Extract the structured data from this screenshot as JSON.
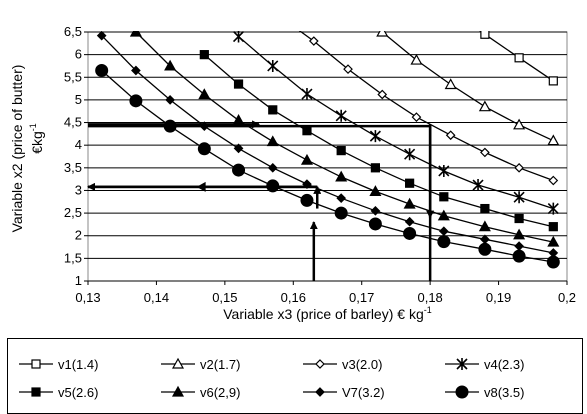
{
  "chart_data": {
    "type": "line",
    "xlabel": "Variable x3 (price of barley) € kg",
    "xlabel_sup": "-1",
    "ylabel": "Variable x2 (price of butter)",
    "ylabel_unit": "€kg",
    "ylabel_sup": "-1",
    "xlim": [
      0.13,
      0.2
    ],
    "ylim": [
      1,
      6.5
    ],
    "x_ticks": [
      "0,13",
      "0,14",
      "0,15",
      "0,16",
      "0,17",
      "0,18",
      "0,19",
      "0,2"
    ],
    "y_ticks": [
      "1",
      "1,5",
      "2",
      "2,5",
      "3",
      "3,5",
      "4",
      "4,5",
      "5",
      "5,5",
      "6",
      "6,5"
    ],
    "grid": "horizontal",
    "legend_position": "bottom",
    "series": [
      {
        "name": "v1(1.4)",
        "marker": "square-open",
        "x": [
          0.183,
          0.188,
          0.193,
          0.198
        ],
        "y": [
          7.0,
          6.45,
          5.93,
          5.42
        ]
      },
      {
        "name": "v2(1.7)",
        "marker": "triangle-open",
        "x": [
          0.173,
          0.178,
          0.183,
          0.188,
          0.193,
          0.198
        ],
        "y": [
          6.5,
          5.88,
          5.34,
          4.85,
          4.45,
          4.1
        ]
      },
      {
        "name": "v3(2.0)",
        "marker": "diamond-open",
        "x": [
          0.158,
          0.163,
          0.168,
          0.173,
          0.178,
          0.183,
          0.188,
          0.193,
          0.198
        ],
        "y": [
          6.85,
          6.3,
          5.68,
          5.12,
          4.62,
          4.22,
          3.84,
          3.5,
          3.22
        ]
      },
      {
        "name": "v4(2.3)",
        "marker": "star",
        "x": [
          0.152,
          0.157,
          0.162,
          0.167,
          0.172,
          0.177,
          0.182,
          0.187,
          0.193,
          0.198
        ],
        "y": [
          6.4,
          5.75,
          5.13,
          4.65,
          4.2,
          3.8,
          3.43,
          3.12,
          2.85,
          2.6
        ]
      },
      {
        "name": "v5(2.6)",
        "marker": "square",
        "x": [
          0.147,
          0.152,
          0.157,
          0.162,
          0.167,
          0.172,
          0.177,
          0.182,
          0.188,
          0.193,
          0.198
        ],
        "y": [
          6.0,
          5.35,
          4.78,
          4.32,
          3.88,
          3.5,
          3.16,
          2.86,
          2.6,
          2.38,
          2.2
        ]
      },
      {
        "name": "v6(2,9)",
        "marker": "triangle",
        "x": [
          0.137,
          0.142,
          0.147,
          0.152,
          0.157,
          0.162,
          0.167,
          0.172,
          0.177,
          0.182,
          0.188,
          0.193,
          0.198
        ],
        "y": [
          6.5,
          5.75,
          5.12,
          4.55,
          4.08,
          3.67,
          3.3,
          2.98,
          2.7,
          2.44,
          2.2,
          2.02,
          1.86
        ]
      },
      {
        "name": "V7(3.2)",
        "marker": "diamond",
        "x": [
          0.132,
          0.137,
          0.142,
          0.147,
          0.152,
          0.157,
          0.162,
          0.167,
          0.172,
          0.177,
          0.182,
          0.188,
          0.193,
          0.198
        ],
        "y": [
          6.42,
          5.65,
          5.0,
          4.42,
          3.93,
          3.5,
          3.14,
          2.83,
          2.55,
          2.31,
          2.1,
          1.92,
          1.77,
          1.62
        ]
      },
      {
        "name": "v8(3.5)",
        "marker": "circle",
        "x": [
          0.132,
          0.137,
          0.142,
          0.147,
          0.152,
          0.157,
          0.162,
          0.167,
          0.172,
          0.177,
          0.182,
          0.188,
          0.193,
          0.198
        ],
        "y": [
          5.65,
          4.98,
          4.42,
          3.92,
          3.45,
          3.1,
          2.78,
          2.5,
          2.26,
          2.05,
          1.87,
          1.7,
          1.55,
          1.42
        ]
      }
    ],
    "annotations": [
      {
        "kind": "guide-arrow",
        "from": [
          0.163,
          1.0
        ],
        "to": [
          0.163,
          2.3
        ]
      },
      {
        "kind": "guide-arrow",
        "from": [
          0.1635,
          2.6
        ],
        "to": [
          0.1635,
          3.08
        ]
      },
      {
        "kind": "guide-arrow",
        "from": [
          0.1635,
          3.08
        ],
        "to": [
          0.13,
          3.08
        ]
      },
      {
        "kind": "guide-line",
        "from": [
          0.1635,
          3.08
        ],
        "to": [
          0.13,
          3.08
        ],
        "marker": "mid-arrow-left"
      },
      {
        "kind": "guide-line",
        "from": [
          0.18,
          1.0
        ],
        "to": [
          0.18,
          4.42
        ]
      },
      {
        "kind": "guide-line",
        "from": [
          0.18,
          4.42
        ],
        "to": [
          0.13,
          4.42
        ]
      },
      {
        "kind": "guide-arrow",
        "from": [
          0.13,
          4.46
        ],
        "to": [
          0.155,
          4.46
        ]
      },
      {
        "kind": "guide-arrow",
        "from": [
          0.18,
          4.46
        ],
        "to": [
          0.18,
          2.4
        ]
      }
    ]
  }
}
